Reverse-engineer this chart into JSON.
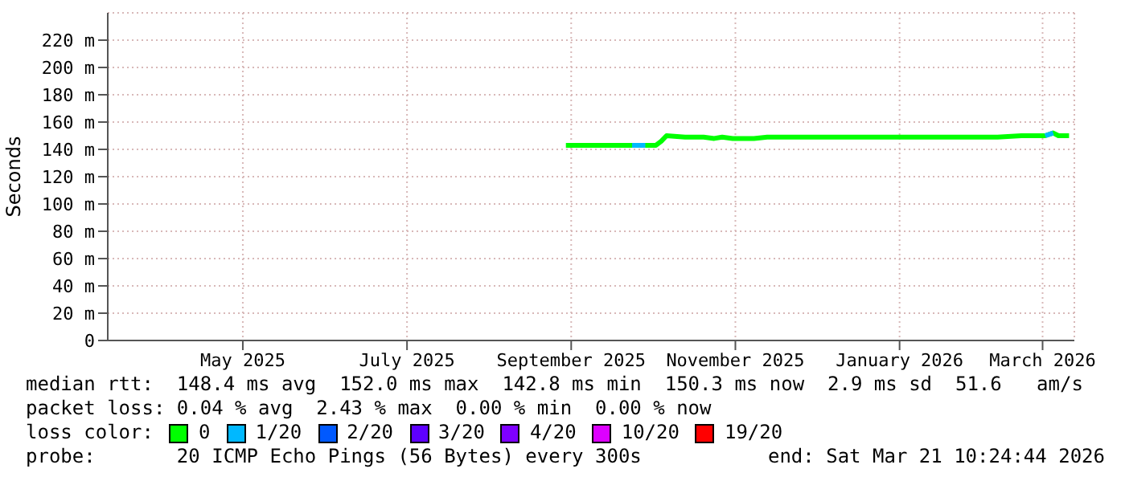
{
  "chart_data": {
    "type": "line",
    "ylabel": "Seconds",
    "x": [
      "2025-09-10",
      "2025-09-20",
      "2025-09-30",
      "2025-10-05",
      "2025-10-10",
      "2025-10-14",
      "2025-10-16",
      "2025-10-18",
      "2025-10-25",
      "2025-11-01",
      "2025-11-05",
      "2025-11-08",
      "2025-11-12",
      "2025-11-20",
      "2025-11-25",
      "2025-12-05",
      "2025-12-20",
      "2026-01-05",
      "2026-01-20",
      "2026-02-05",
      "2026-02-20",
      "2026-03-01",
      "2026-03-05",
      "2026-03-10",
      "2026-03-13",
      "2026-03-15",
      "2026-03-19"
    ],
    "series": [
      {
        "name": "0",
        "color": "#00ff00",
        "values": [
          143,
          143,
          143,
          143,
          143,
          143,
          146,
          150,
          149,
          149,
          148,
          149,
          148,
          148,
          149,
          149,
          149,
          149,
          149,
          149,
          149,
          150,
          150,
          150,
          152,
          150,
          150
        ]
      },
      {
        "name": "1/20",
        "color": "#00b8ff",
        "values": [
          null,
          null,
          null,
          143,
          143,
          null,
          null,
          null,
          null,
          null,
          null,
          null,
          null,
          null,
          null,
          null,
          null,
          null,
          null,
          null,
          null,
          null,
          null,
          150,
          152,
          null,
          null
        ]
      },
      {
        "name": "2/20",
        "color": "#0059ff",
        "values": [
          null,
          null,
          null,
          null,
          null,
          null,
          null,
          null,
          null,
          null,
          null,
          null,
          null,
          null,
          null,
          null,
          null,
          null,
          null,
          null,
          null,
          null,
          null,
          null,
          null,
          null,
          null
        ]
      },
      {
        "name": "3/20",
        "color": "#5e00ff",
        "values": [
          null,
          null,
          null,
          null,
          null,
          null,
          null,
          null,
          null,
          null,
          null,
          null,
          null,
          null,
          null,
          null,
          null,
          null,
          null,
          null,
          null,
          null,
          null,
          null,
          null,
          null,
          null
        ]
      },
      {
        "name": "4/20",
        "color": "#7e00ff",
        "values": [
          null,
          null,
          null,
          null,
          null,
          null,
          null,
          null,
          null,
          null,
          null,
          null,
          null,
          null,
          null,
          null,
          null,
          null,
          null,
          null,
          null,
          null,
          null,
          null,
          null,
          null,
          null
        ]
      },
      {
        "name": "10/20",
        "color": "#dd00ff",
        "values": [
          null,
          null,
          null,
          null,
          null,
          null,
          null,
          null,
          null,
          null,
          null,
          null,
          null,
          null,
          null,
          null,
          null,
          null,
          null,
          null,
          null,
          null,
          null,
          null,
          null,
          null,
          null
        ]
      },
      {
        "name": "19/20",
        "color": "#ff0000",
        "values": [
          null,
          null,
          null,
          null,
          null,
          null,
          null,
          null,
          null,
          null,
          null,
          null,
          null,
          null,
          null,
          null,
          null,
          null,
          null,
          null,
          null,
          null,
          null,
          null,
          null,
          null,
          null
        ]
      }
    ],
    "xlim": [
      "2025-03-21",
      "2026-03-21"
    ],
    "xticks": [
      {
        "value": "2025-05-11",
        "label": "May 2025"
      },
      {
        "value": "2025-07-12",
        "label": "July 2025"
      },
      {
        "value": "2025-09-12",
        "label": "September 2025"
      },
      {
        "value": "2025-11-13",
        "label": "November 2025"
      },
      {
        "value": "2026-01-14",
        "label": "January 2026"
      },
      {
        "value": "2026-03-09",
        "label": "March 2026"
      }
    ],
    "ylim": [
      0,
      240
    ],
    "yticks": [
      0,
      {
        "value": 20,
        "label": "20 m"
      },
      {
        "value": 40,
        "label": "40 m"
      },
      {
        "value": 60,
        "label": "60 m"
      },
      {
        "value": 80,
        "label": "80 m"
      },
      {
        "value": 100,
        "label": "100 m"
      },
      {
        "value": 120,
        "label": "120 m"
      },
      {
        "value": 140,
        "label": "140 m"
      },
      {
        "value": 160,
        "label": "160 m"
      },
      {
        "value": 180,
        "label": "180 m"
      },
      {
        "value": 200,
        "label": "200 m"
      },
      {
        "value": 220,
        "label": "220 m"
      }
    ],
    "grid": true,
    "legend": "bottom",
    "legend_title": "loss color:",
    "marker": "none",
    "line_style": "solid",
    "annotations": [
      "median rtt:  148.4 ms avg  152.0 ms max  142.8 ms min  150.3 ms now  2.9 ms sd  51.6   am/s",
      "packet loss: 0.04 % avg  2.43 % max  0.00 % min  0.00 % now",
      "probe:       20 ICMP Echo Pings (56 Bytes) every 300s",
      "end: Sat Mar 21 10:24:44 2026"
    ]
  }
}
